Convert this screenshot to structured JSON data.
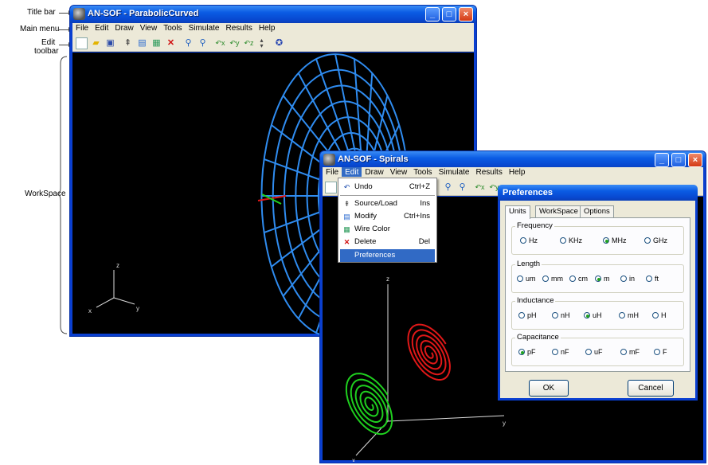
{
  "annotations": {
    "title_bar": "Title bar",
    "main_menu": "Main menu",
    "edit_toolbar_line1": "Edit",
    "edit_toolbar_line2": "toolbar",
    "workspace": "WorkSpace"
  },
  "window1": {
    "title": "AN-SOF - ParabolicCurved",
    "menu": [
      "File",
      "Edit",
      "Draw",
      "View",
      "Tools",
      "Simulate",
      "Results",
      "Help"
    ],
    "toolbar_icons": [
      "new-file-icon",
      "open-folder-icon",
      "save-icon",
      "source-load-icon",
      "modify-icon",
      "wire-color-icon",
      "delete-icon",
      "zoom-in-icon",
      "zoom-out-icon",
      "rotate-x-icon",
      "rotate-y-icon",
      "rotate-z-icon",
      "spin-icon",
      "help-icon"
    ],
    "axes": {
      "x": "x",
      "y": "y",
      "z": "z"
    },
    "wire_color": "#2f8cf0"
  },
  "window2": {
    "title": "AN-SOF - Spirals",
    "menu": [
      "File",
      "Edit",
      "Draw",
      "View",
      "Tools",
      "Simulate",
      "Results",
      "Help"
    ],
    "axes": {
      "x": "x",
      "y": "y",
      "z": "z"
    },
    "spiral_colors": {
      "green": "#1fd01f",
      "red": "#e01818"
    }
  },
  "edit_menu": {
    "items": [
      {
        "label": "Undo",
        "shortcut": "Ctrl+Z",
        "icon": "undo-icon"
      },
      {
        "label": "Source/Load",
        "shortcut": "Ins",
        "icon": "source-load-icon"
      },
      {
        "label": "Modify",
        "shortcut": "Ctrl+Ins",
        "icon": "modify-icon"
      },
      {
        "label": "Wire Color",
        "shortcut": "",
        "icon": "wire-color-icon"
      },
      {
        "label": "Delete",
        "shortcut": "Del",
        "icon": "delete-icon"
      },
      {
        "label": "Preferences",
        "shortcut": "",
        "icon": ""
      }
    ],
    "selected": "Preferences"
  },
  "preferences": {
    "title": "Preferences",
    "tabs": [
      "Units",
      "WorkSpace",
      "Options"
    ],
    "active_tab": "Units",
    "groups": [
      {
        "label": "Frequency",
        "options": [
          "Hz",
          "KHz",
          "MHz",
          "GHz"
        ],
        "selected": "MHz"
      },
      {
        "label": "Length",
        "options": [
          "um",
          "mm",
          "cm",
          "m",
          "in",
          "ft"
        ],
        "selected": "m"
      },
      {
        "label": "Inductance",
        "options": [
          "pH",
          "nH",
          "uH",
          "mH",
          "H"
        ],
        "selected": "uH"
      },
      {
        "label": "Capacitance",
        "options": [
          "pF",
          "nF",
          "uF",
          "mF",
          "F"
        ],
        "selected": "pF"
      }
    ],
    "ok_label": "OK",
    "cancel_label": "Cancel"
  }
}
